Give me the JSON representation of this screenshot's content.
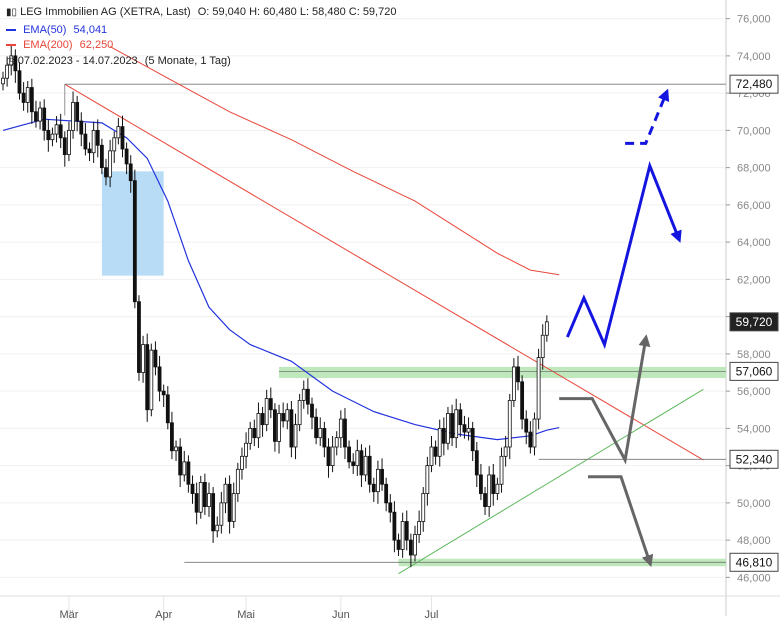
{
  "header": {
    "title": "LEG Immobilien AG (XETRA, Last)",
    "ohlc": "O: 59,040  H: 60,480  L: 58,480  C: 59,720",
    "ema50_label": "EMA(50)",
    "ema50_value": "54,041",
    "ema200_label": "EMA(200)",
    "ema200_value": "62,250",
    "period": "07.02.2023 - 14.07.2023",
    "period_note": "(5 Monate, 1 Tag)"
  },
  "colors": {
    "ema50": "#2233dd",
    "ema200": "#e8463a",
    "candle": "#111111",
    "box": "#b8dcf6",
    "zone": "#bfe8bd",
    "trend_green": "#5cb85c",
    "projection_blue": "#1515e0",
    "projection_gray": "#666666"
  },
  "chart_data": {
    "type": "candlestick",
    "ylim": [
      45,
      77
    ],
    "y_ticks": [
      46,
      48,
      50,
      52,
      54,
      56,
      58,
      60,
      62,
      64,
      66,
      68,
      70,
      72,
      74,
      76
    ],
    "y_tick_labels": [
      "46,000",
      "48,000",
      "50,000",
      "52,000",
      "54,000",
      "56,000",
      "58,000",
      "60,000",
      "62,000",
      "64,000",
      "66,000",
      "68,000",
      "70,000",
      "72,000",
      "74,000",
      "76,000"
    ],
    "x_labels": [
      {
        "date": "2023-03-01",
        "label": "Mär"
      },
      {
        "date": "2023-04-01",
        "label": "Apr"
      },
      {
        "date": "2023-05-01",
        "label": "Mai"
      },
      {
        "date": "2023-06-01",
        "label": "Jun"
      },
      {
        "date": "2023-07-01",
        "label": "Jul"
      }
    ],
    "close": [
      72.8,
      73.5,
      74.0,
      73.2,
      72.0,
      71.5,
      72.3,
      71.0,
      70.5,
      71.2,
      70.0,
      69.5,
      69.8,
      70.3,
      69.6,
      68.7,
      70.0,
      71.5,
      70.5,
      69.8,
      69.0,
      68.8,
      70.0,
      69.2,
      68.0,
      67.5,
      68.9,
      69.6,
      70.2,
      69.0,
      68.2,
      67.3,
      60.8,
      57.0,
      58.5,
      55.0,
      58.2,
      57.3,
      56.0,
      55.8,
      54.3,
      52.8,
      53.0,
      51.5,
      52.2,
      51.0,
      50.5,
      49.5,
      51.1,
      49.8,
      50.5,
      48.5,
      48.8,
      50.0,
      51.0,
      49.0,
      50.5,
      51.8,
      52.5,
      53.2,
      54.0,
      53.5,
      54.8,
      54.2,
      55.6,
      55.0,
      53.3,
      54.8,
      54.4,
      55.0,
      53.0,
      54.2,
      55.5,
      56.1,
      55.3,
      54.6,
      53.5,
      54.0,
      53.0,
      52.0,
      53.0,
      53.5,
      54.5,
      53.0,
      52.2,
      52.0,
      52.8,
      51.5,
      52.5,
      51.0,
      50.6,
      51.8,
      51.0,
      50.0,
      49.5,
      48.0,
      47.5,
      49.0,
      48.0,
      47.2,
      48.3,
      49.0,
      50.5,
      52.0,
      53.0,
      52.5,
      54.0,
      53.2,
      54.8,
      53.5,
      55.0,
      54.2,
      53.8,
      54.0,
      52.8,
      51.5,
      50.5,
      49.8,
      51.5,
      50.5,
      51.0,
      52.5,
      53.0,
      55.5,
      57.3,
      56.5,
      54.5,
      53.8,
      53.0,
      54.5,
      57.8,
      59.0,
      59.72
    ],
    "last_price": 59.72,
    "ema50": [
      [
        0,
        70.0
      ],
      [
        10,
        70.6
      ],
      [
        24,
        70.4
      ],
      [
        30,
        69.6
      ],
      [
        35,
        68.5
      ],
      [
        40,
        66.2
      ],
      [
        45,
        63.0
      ],
      [
        50,
        60.5
      ],
      [
        55,
        59.3
      ],
      [
        60,
        58.5
      ],
      [
        70,
        57.6
      ],
      [
        80,
        56.0
      ],
      [
        90,
        54.9
      ],
      [
        100,
        54.2
      ],
      [
        110,
        53.7
      ],
      [
        120,
        53.4
      ],
      [
        128,
        53.6
      ],
      [
        132,
        53.9
      ],
      [
        135,
        54.04
      ]
    ],
    "ema200": [
      [
        26,
        74.5
      ],
      [
        40,
        72.8
      ],
      [
        55,
        71.0
      ],
      [
        70,
        69.5
      ],
      [
        85,
        67.8
      ],
      [
        100,
        66.2
      ],
      [
        110,
        64.8
      ],
      [
        120,
        63.4
      ],
      [
        128,
        62.5
      ],
      [
        135,
        62.25
      ]
    ],
    "annotations": {
      "levels": [
        {
          "value": 72.48,
          "label": "72,480"
        },
        {
          "value": 57.06,
          "label": "57,060"
        },
        {
          "value": 52.34,
          "label": "52,340"
        },
        {
          "value": 46.81,
          "label": "46,810"
        }
      ],
      "current_label": "59,720",
      "gap_box": {
        "from_index": 24,
        "to_index": 39,
        "low": 62.2,
        "high": 67.8
      },
      "support_zones": [
        {
          "from_index": 67,
          "low": 56.7,
          "high": 57.3
        },
        {
          "from_index": 96,
          "low": 46.6,
          "high": 47.0
        }
      ],
      "downtrend_line": {
        "x0": 15,
        "y0": 72.48,
        "x1": 170,
        "y1": 52.3
      },
      "uptrend_line": {
        "x0": 96,
        "y0": 46.2,
        "x1": 170,
        "y1": 56.1
      },
      "bullish_projection": [
        [
          137,
          58.9
        ],
        [
          141,
          61.0
        ],
        [
          146,
          58.5
        ],
        [
          157,
          68.1
        ],
        [
          164,
          64.2
        ]
      ],
      "bullish_projection_dashed": [
        [
          151,
          69.3
        ],
        [
          156,
          69.3
        ],
        [
          161,
          72.0
        ]
      ],
      "bearish_projection": [
        [
          135,
          55.6
        ],
        [
          143,
          55.6
        ],
        [
          151,
          52.3
        ],
        [
          156,
          58.8
        ]
      ],
      "bearish_projection_2": [
        [
          142,
          51.4
        ],
        [
          150,
          51.4
        ],
        [
          157,
          46.8
        ]
      ]
    }
  }
}
